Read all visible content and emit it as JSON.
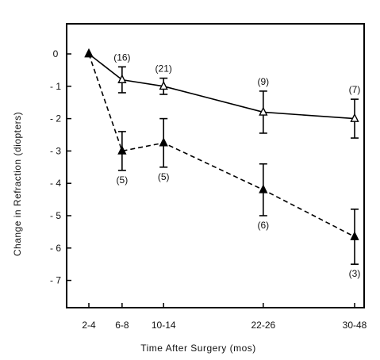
{
  "chart_data": {
    "type": "line",
    "xlabel": "Time After Surgery  (mos)",
    "ylabel": "Change in Refraction (diopters)",
    "categories": [
      "2-4",
      "6-8",
      "10-14",
      "22-26",
      "30-48"
    ],
    "category_positions": [
      3,
      7,
      12,
      24,
      35
    ],
    "xlim": [
      0,
      36
    ],
    "ylim": [
      0,
      -8
    ],
    "y_ticks": [
      "0",
      "- 1",
      "- 2",
      "- 3",
      "- 4",
      "- 5",
      "- 6",
      "- 7"
    ],
    "y_tick_values": [
      0,
      -1,
      -2,
      -3,
      -4,
      -5,
      -6,
      -7
    ],
    "grid": false,
    "legend": null,
    "series": [
      {
        "marker": "open-triangle",
        "line_style": "solid",
        "x": [
          3,
          7,
          12,
          24,
          35
        ],
        "values": [
          0,
          -0.8,
          -1.0,
          -1.8,
          -2.0
        ],
        "error": [
          0,
          0.4,
          0.25,
          0.65,
          0.6
        ],
        "n_labels": [
          "",
          "(16)",
          "(21)",
          "(9)",
          "(7)"
        ]
      },
      {
        "marker": "filled-triangle",
        "line_style": "dashed",
        "x": [
          3,
          7,
          12,
          24,
          35
        ],
        "values": [
          0,
          -3.0,
          -2.75,
          -4.2,
          -5.65
        ],
        "error": [
          0,
          0.6,
          0.75,
          0.8,
          0.85
        ],
        "n_labels": [
          "",
          "(5)",
          "(5)",
          "(6)",
          "(3)"
        ]
      }
    ]
  }
}
